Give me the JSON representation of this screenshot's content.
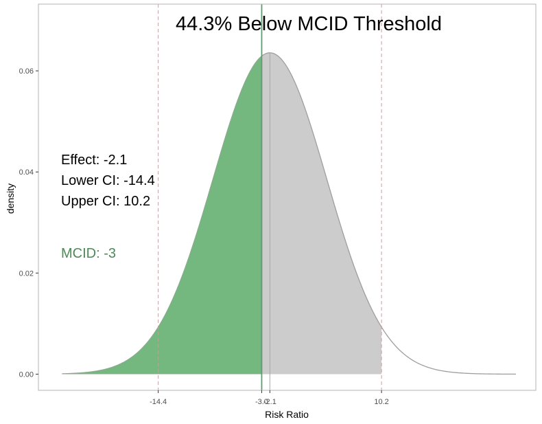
{
  "chart_data": {
    "type": "area",
    "title": "44.3% Below MCID Threshold",
    "xlabel": "Risk Ratio",
    "ylabel": "density",
    "distribution": {
      "family": "normal",
      "mean": -2.1,
      "sd": 6.275
    },
    "x_range": [
      -25,
      25
    ],
    "xlim": [
      -27.6,
      27.2
    ],
    "ylim": [
      -0.0032,
      0.0732
    ],
    "x_ticks": [
      -14.4,
      -3.0,
      -2.1,
      10.2
    ],
    "x_tick_labels": [
      "-14.4",
      "-3.0",
      "-2.1",
      "10.2"
    ],
    "y_ticks": [
      0.0,
      0.02,
      0.04,
      0.06
    ],
    "y_tick_labels": [
      "0.00",
      "0.02",
      "0.04",
      "0.06"
    ],
    "grid": false,
    "effect": -2.1,
    "lower_ci": -14.4,
    "upper_ci": 10.2,
    "mcid": -3,
    "annotations": {
      "effect": "Effect: -2.1",
      "lower_ci": "Lower CI: -14.4",
      "upper_ci": "Upper CI: 10.2",
      "mcid": "MCID: -3"
    },
    "colors": {
      "below_mcid_fill": "#74B77F",
      "ci_fill": "#CCCCCC",
      "curve": "#9E9E9E",
      "mcid_line": "#5E9E6C",
      "ci_line": "#D4979B",
      "effect_line": "#A8A8A8",
      "mcid_text": "#4B8A55",
      "panel_border": "#B3B3B3"
    }
  }
}
